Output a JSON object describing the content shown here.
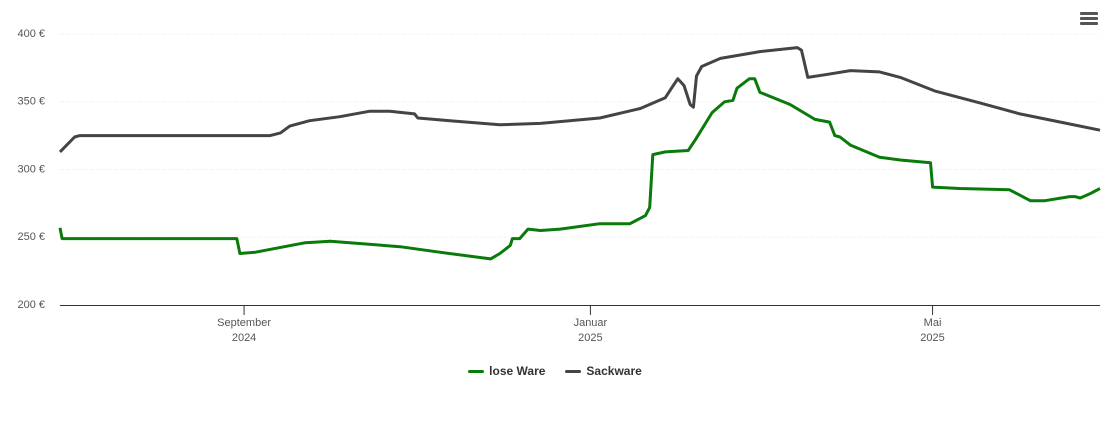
{
  "chart_data": {
    "type": "line",
    "xlim": [
      2024.49,
      2025.49
    ],
    "xticks": [
      {
        "value": 2024.667,
        "label": "September 2024"
      },
      {
        "value": 2025.0,
        "label": "Januar 2025"
      },
      {
        "value": 2025.329,
        "label": "Mai 2025"
      }
    ],
    "ylim": [
      200,
      400
    ],
    "yticks": [
      {
        "value": 200,
        "label": "200 €"
      },
      {
        "value": 250,
        "label": "250 €"
      },
      {
        "value": 300,
        "label": "300 €"
      },
      {
        "value": 350,
        "label": "350 €"
      },
      {
        "value": 400,
        "label": "400 €"
      }
    ],
    "grid": true,
    "legend": "bottom",
    "series": [
      {
        "name": "lose Ware",
        "color": "#0a7a0a",
        "x": [
          2024.49,
          2024.492,
          2024.66,
          2024.663,
          2024.678,
          2024.726,
          2024.75,
          2024.817,
          2024.855,
          2024.904,
          2024.913,
          2024.923,
          2024.925,
          2024.932,
          2024.94,
          2024.952,
          2024.971,
          2025.009,
          2025.038,
          2025.053,
          2025.057,
          2025.06,
          2025.072,
          2025.094,
          2025.101,
          2025.117,
          2025.129,
          2025.137,
          2025.141,
          2025.153,
          2025.158,
          2025.163,
          2025.192,
          2025.216,
          2025.23,
          2025.235,
          2025.24,
          2025.25,
          2025.278,
          2025.298,
          2025.327,
          2025.329,
          2025.355,
          2025.403,
          2025.413,
          2025.423,
          2025.437,
          2025.461,
          2025.466,
          2025.471,
          2025.48,
          2025.49
        ],
        "values": [
          257,
          249,
          249,
          238,
          239,
          246,
          247,
          243,
          239,
          234,
          238,
          244,
          249,
          249,
          256,
          255,
          256,
          260,
          260,
          266,
          272,
          311,
          313,
          314,
          322,
          342,
          350,
          351,
          360,
          367,
          367,
          357,
          348,
          337,
          335,
          325,
          324,
          318,
          309,
          307,
          305,
          287,
          286,
          285,
          281,
          277,
          277,
          280,
          280,
          279,
          282,
          286
        ]
      },
      {
        "name": "Sackware",
        "color": "#444444",
        "x": [
          2024.49,
          2024.504,
          2024.509,
          2024.692,
          2024.702,
          2024.711,
          2024.73,
          2024.759,
          2024.788,
          2024.807,
          2024.831,
          2024.834,
          2024.865,
          2024.913,
          2024.952,
          2025.009,
          2025.048,
          2025.072,
          2025.078,
          2025.084,
          2025.09,
          2025.096,
          2025.099,
          2025.102,
          2025.107,
          2025.125,
          2025.163,
          2025.199,
          2025.203,
          2025.209,
          2025.226,
          2025.25,
          2025.278,
          2025.298,
          2025.331,
          2025.375,
          2025.413,
          2025.452,
          2025.49
        ],
        "values": [
          313,
          324,
          325,
          325,
          327,
          332,
          336,
          339,
          343,
          343,
          341,
          338,
          336,
          333,
          334,
          338,
          345,
          353,
          360,
          367,
          362,
          348,
          346,
          369,
          376,
          382,
          387,
          390,
          388,
          368,
          370,
          373,
          372,
          368,
          358,
          349,
          341,
          335,
          329
        ]
      }
    ]
  }
}
